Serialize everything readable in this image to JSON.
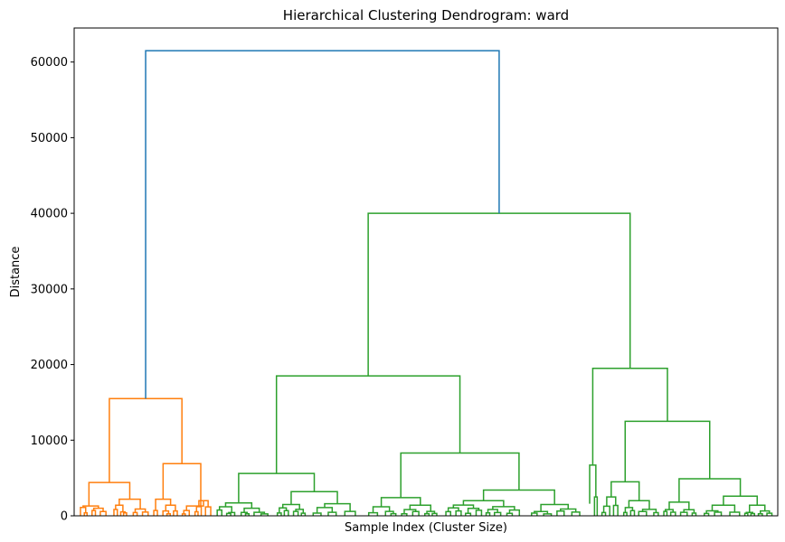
{
  "chart_data": {
    "type": "dendrogram",
    "title": "Hierarchical Clustering Dendrogram: ward",
    "xlabel": "Sample Index (Cluster Size)",
    "ylabel": "Distance",
    "ylim": [
      0,
      64500
    ],
    "yticks": [
      0,
      10000,
      20000,
      30000,
      40000,
      50000,
      60000
    ],
    "ytick_labels": [
      "0",
      "10000",
      "20000",
      "30000",
      "40000",
      "50000",
      "60000"
    ],
    "grid": false,
    "legend": "none",
    "colors": {
      "root": "#1f77b4",
      "cluster_1": "#ff7f0e",
      "cluster_2": "#2ca02c"
    },
    "major_merges": [
      {
        "name": "root",
        "height": 61500,
        "color": "root"
      },
      {
        "name": "cluster_1",
        "height": 15500,
        "color": "cluster_1"
      },
      {
        "name": "cluster_2",
        "height": 40000,
        "color": "cluster_2"
      },
      {
        "name": "cluster_2_left",
        "height": 18500,
        "color": "cluster_2"
      },
      {
        "name": "cluster_2_right",
        "height": 19500,
        "color": "cluster_2"
      },
      {
        "name": "cluster_2_right_sub",
        "height": 12500,
        "color": "cluster_2"
      },
      {
        "name": "cluster_2_left_a",
        "height": 5600,
        "color": "cluster_2"
      },
      {
        "name": "cluster_2_left_b",
        "height": 8300,
        "color": "cluster_2"
      },
      {
        "name": "cluster_1_left",
        "height": 4400,
        "color": "cluster_1"
      },
      {
        "name": "cluster_1_right",
        "height": 6900,
        "color": "cluster_1"
      },
      {
        "name": "cluster_2_right_sub_b",
        "height": 4900,
        "color": "cluster_2"
      }
    ]
  }
}
